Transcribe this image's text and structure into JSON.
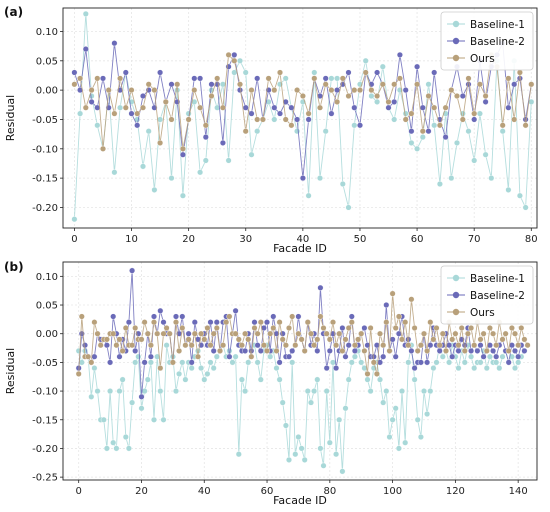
{
  "chart_data": [
    {
      "type": "line",
      "panel_label": "(a)",
      "xlabel": "Facade ID",
      "ylabel": "Residual",
      "xlim": [
        -2,
        81
      ],
      "ylim": [
        -0.235,
        0.14
      ],
      "xticks": [
        0,
        10,
        20,
        30,
        40,
        50,
        60,
        70,
        80
      ],
      "yticks": [
        0.1,
        0.05,
        0.0,
        -0.05,
        -0.1,
        -0.15,
        -0.2
      ],
      "grid": true,
      "legend_position": "top-right",
      "series": [
        {
          "name": "Baseline-1",
          "color": "#a8d8d8",
          "values": [
            -0.22,
            -0.04,
            0.13,
            -0.01,
            -0.06,
            -0.1,
            0.0,
            -0.14,
            -0.03,
            0.03,
            -0.02,
            -0.05,
            -0.13,
            -0.07,
            -0.17,
            -0.05,
            -0.02,
            -0.15,
            0.0,
            -0.18,
            -0.04,
            -0.02,
            -0.14,
            -0.12,
            0.0,
            -0.03,
            0.01,
            -0.12,
            0.03,
            0.05,
            0.03,
            -0.11,
            -0.07,
            -0.05,
            -0.02,
            -0.05,
            0.01,
            0.02,
            -0.03,
            -0.07,
            -0.02,
            -0.18,
            0.03,
            -0.15,
            -0.07,
            0.02,
            0.02,
            -0.16,
            -0.2,
            -0.06,
            0.01,
            0.05,
            -0.01,
            -0.02,
            0.04,
            -0.03,
            -0.05,
            0.0,
            -0.04,
            -0.09,
            -0.1,
            -0.08,
            0.01,
            -0.06,
            -0.16,
            -0.04,
            -0.15,
            -0.09,
            -0.04,
            -0.07,
            -0.12,
            -0.04,
            -0.11,
            -0.15,
            0.05,
            -0.07,
            -0.17,
            0.05,
            -0.18,
            -0.2,
            -0.02
          ]
        },
        {
          "name": "Baseline-2",
          "color": "#6a6ab8",
          "values": [
            0.03,
            0.0,
            0.07,
            -0.02,
            -0.03,
            0.02,
            -0.03,
            0.08,
            0.0,
            0.03,
            -0.04,
            -0.06,
            -0.01,
            0.0,
            -0.03,
            0.03,
            -0.02,
            0.01,
            -0.02,
            -0.11,
            -0.05,
            0.02,
            0.02,
            -0.08,
            0.01,
            0.01,
            -0.09,
            0.04,
            0.06,
            0.0,
            -0.03,
            -0.04,
            0.02,
            -0.05,
            0.0,
            -0.03,
            -0.04,
            -0.02,
            -0.03,
            -0.05,
            -0.15,
            -0.05,
            0.02,
            -0.01,
            0.02,
            -0.04,
            0.0,
            0.01,
            0.03,
            -0.03,
            -0.06,
            0.03,
            0.01,
            0.03,
            0.01,
            -0.03,
            -0.02,
            0.06,
            0.0,
            -0.07,
            0.04,
            -0.03,
            -0.07,
            0.03,
            -0.05,
            -0.08,
            0.0,
            0.04,
            -0.01,
            0.01,
            -0.05,
            0.05,
            -0.02,
            0.04,
            0.06,
            0.08,
            -0.03,
            0.01,
            0.02,
            -0.05,
            0.01
          ]
        },
        {
          "name": "Ours",
          "color": "#b8a07a",
          "values": [
            0.01,
            0.02,
            -0.03,
            0.0,
            0.02,
            -0.1,
            0.0,
            -0.04,
            0.02,
            -0.03,
            0.0,
            -0.04,
            -0.03,
            0.01,
            0.0,
            -0.09,
            -0.02,
            -0.05,
            0.01,
            -0.1,
            -0.05,
            0.0,
            -0.03,
            -0.06,
            -0.01,
            0.02,
            -0.03,
            0.06,
            0.05,
            0.01,
            -0.07,
            0.0,
            -0.05,
            -0.05,
            0.02,
            0.0,
            0.03,
            -0.05,
            -0.06,
            0.0,
            -0.01,
            -0.04,
            0.02,
            -0.03,
            0.01,
            0.0,
            -0.02,
            0.02,
            -0.01,
            0.0,
            0.0,
            0.03,
            0.0,
            -0.01,
            0.01,
            -0.02,
            0.01,
            0.02,
            -0.05,
            -0.04,
            0.01,
            -0.07,
            -0.01,
            -0.03,
            -0.06,
            -0.03,
            0.0,
            -0.01,
            -0.05,
            0.02,
            -0.04,
            0.01,
            -0.01,
            0.06,
            0.04,
            -0.06,
            0.02,
            -0.05,
            0.03,
            -0.06,
            0.01
          ]
        }
      ]
    },
    {
      "type": "line",
      "panel_label": "(b)",
      "xlabel": "Facade ID",
      "ylabel": "Residual",
      "xlim": [
        -5,
        146
      ],
      "ylim": [
        -0.255,
        0.125
      ],
      "xticks": [
        0,
        20,
        40,
        60,
        80,
        100,
        120,
        140
      ],
      "yticks": [
        0.1,
        0.05,
        0.0,
        -0.05,
        -0.1,
        -0.15,
        -0.2,
        -0.25
      ],
      "grid": true,
      "legend_position": "top-right",
      "series": [
        {
          "name": "Baseline-1",
          "color": "#a8d8d8",
          "values": [
            -0.03,
            -0.05,
            -0.03,
            -0.04,
            -0.11,
            -0.06,
            -0.1,
            -0.15,
            -0.15,
            -0.2,
            -0.1,
            -0.19,
            -0.2,
            -0.1,
            -0.08,
            -0.18,
            -0.2,
            -0.12,
            -0.05,
            -0.04,
            -0.13,
            -0.1,
            -0.08,
            -0.05,
            -0.15,
            -0.04,
            -0.1,
            -0.15,
            -0.02,
            -0.05,
            -0.04,
            -0.1,
            -0.07,
            -0.05,
            -0.08,
            -0.05,
            -0.06,
            -0.04,
            -0.03,
            -0.06,
            -0.08,
            -0.07,
            -0.05,
            -0.06,
            -0.04,
            -0.03,
            -0.02,
            -0.04,
            -0.03,
            -0.05,
            -0.04,
            -0.21,
            -0.08,
            -0.1,
            -0.05,
            -0.03,
            -0.02,
            -0.05,
            -0.08,
            -0.03,
            -0.02,
            -0.04,
            -0.03,
            -0.06,
            -0.08,
            -0.12,
            -0.16,
            -0.22,
            -0.05,
            -0.21,
            -0.18,
            -0.2,
            -0.22,
            -0.1,
            -0.12,
            -0.1,
            -0.08,
            -0.2,
            -0.23,
            -0.1,
            -0.19,
            -0.05,
            -0.21,
            -0.15,
            -0.24,
            -0.13,
            -0.08,
            -0.05,
            -0.04,
            -0.03,
            -0.05,
            -0.06,
            -0.08,
            -0.1,
            -0.06,
            -0.05,
            -0.08,
            -0.12,
            -0.1,
            -0.18,
            -0.15,
            -0.13,
            -0.2,
            -0.1,
            -0.19,
            -0.05,
            -0.02,
            -0.08,
            -0.15,
            -0.18,
            -0.1,
            -0.14,
            -0.1,
            -0.06,
            -0.05,
            -0.02,
            -0.04,
            -0.03,
            -0.05,
            -0.02,
            -0.04,
            -0.06,
            -0.03,
            -0.05,
            -0.02,
            -0.04,
            -0.06,
            -0.05,
            -0.05,
            -0.03,
            -0.06,
            -0.04,
            -0.05,
            -0.05,
            -0.06,
            -0.04,
            -0.03,
            -0.05,
            -0.04,
            -0.06,
            -0.05,
            -0.04,
            -0.03
          ]
        },
        {
          "name": "Baseline-2",
          "color": "#6a6ab8",
          "values": [
            -0.06,
            0.0,
            -0.02,
            -0.04,
            -0.05,
            -0.04,
            0.0,
            -0.01,
            -0.01,
            -0.02,
            -0.05,
            0.03,
            0.0,
            -0.04,
            -0.01,
            -0.03,
            0.02,
            0.11,
            -0.03,
            0.0,
            -0.11,
            -0.05,
            0.0,
            -0.04,
            0.03,
            0.0,
            0.04,
            0.02,
            0.0,
            0.0,
            -0.05,
            0.03,
            0.0,
            0.03,
            -0.02,
            0.0,
            -0.05,
            0.02,
            -0.01,
            -0.02,
            0.0,
            -0.02,
            0.02,
            -0.03,
            0.02,
            -0.03,
            0.02,
            0.03,
            -0.04,
            0.0,
            0.04,
            -0.02,
            -0.03,
            -0.03,
            0.0,
            -0.03,
            0.02,
            -0.02,
            -0.03,
            0.01,
            0.02,
            -0.03,
            0.03,
            0.0,
            -0.05,
            0.0,
            -0.04,
            -0.04,
            -0.03,
            -0.02,
            0.03,
            -0.01,
            -0.03,
            0.02,
            -0.02,
            0.0,
            -0.03,
            0.08,
            0.0,
            -0.06,
            -0.03,
            0.0,
            -0.06,
            -0.03,
            0.01,
            -0.04,
            -0.02,
            0.03,
            -0.03,
            -0.02,
            0.0,
            0.01,
            -0.02,
            -0.04,
            -0.04,
            -0.02,
            -0.05,
            -0.04,
            0.05,
            -0.03,
            -0.01,
            -0.04,
            0.0,
            0.03,
            -0.02,
            -0.01,
            -0.03,
            -0.06,
            -0.05,
            -0.05,
            0.0,
            -0.05,
            -0.02,
            0.01,
            -0.02,
            -0.03,
            -0.02,
            0.0,
            -0.02,
            -0.04,
            -0.02,
            -0.03,
            -0.01,
            -0.02,
            0.01,
            -0.03,
            -0.02,
            -0.03,
            -0.02,
            -0.04,
            -0.03,
            -0.02,
            -0.03,
            -0.04,
            -0.02,
            -0.01,
            -0.03,
            -0.05,
            -0.02,
            -0.03,
            -0.04,
            -0.02,
            -0.03
          ]
        },
        {
          "name": "Ours",
          "color": "#b8a07a",
          "values": [
            -0.07,
            0.03,
            -0.04,
            -0.04,
            -0.05,
            0.02,
            0.0,
            -0.02,
            -0.01,
            -0.01,
            0.0,
            0.0,
            -0.02,
            -0.01,
            -0.03,
            0.01,
            -0.02,
            -0.02,
            0.01,
            -0.01,
            -0.01,
            0.02,
            0.0,
            -0.02,
            0.02,
            0.0,
            -0.06,
            0.0,
            0.01,
            0.0,
            -0.05,
            0.02,
            -0.03,
            0.01,
            -0.02,
            -0.01,
            -0.02,
            0.0,
            -0.04,
            0.0,
            -0.01,
            0.01,
            -0.02,
            0.0,
            0.01,
            -0.03,
            -0.02,
            0.02,
            0.03,
            0.0,
            0.0,
            -0.01,
            -0.02,
            0.0,
            -0.01,
            -0.04,
            0.01,
            0.0,
            0.02,
            -0.02,
            -0.03,
            0.0,
            0.01,
            -0.03,
            0.02,
            -0.01,
            -0.02,
            0.01,
            0.03,
            -0.02,
            0.0,
            -0.01,
            -0.03,
            0.02,
            0.0,
            -0.02,
            -0.01,
            0.03,
            0.01,
            0.0,
            -0.01,
            0.02,
            -0.02,
            0.0,
            -0.03,
            -0.01,
            0.01,
            0.02,
            -0.02,
            -0.01,
            0.0,
            -0.03,
            -0.07,
            0.01,
            -0.05,
            -0.07,
            0.0,
            -0.02,
            0.02,
            -0.03,
            0.07,
            0.01,
            0.03,
            -0.01,
            0.02,
            -0.02,
            0.06,
            0.01,
            -0.03,
            -0.02,
            0.0,
            -0.03,
            0.02,
            -0.01,
            0.01,
            -0.02,
            0.0,
            -0.03,
            0.02,
            -0.01,
            0.0,
            -0.02,
            0.01,
            -0.03,
            0.0,
            0.01,
            -0.02,
            0.02,
            -0.01,
            0.0,
            -0.03,
            0.01,
            0.0,
            -0.02,
            0.02,
            -0.01,
            0.0,
            -0.03,
            0.01,
            0.0,
            -0.02,
            0.01,
            -0.01,
            -0.02
          ]
        }
      ]
    }
  ]
}
